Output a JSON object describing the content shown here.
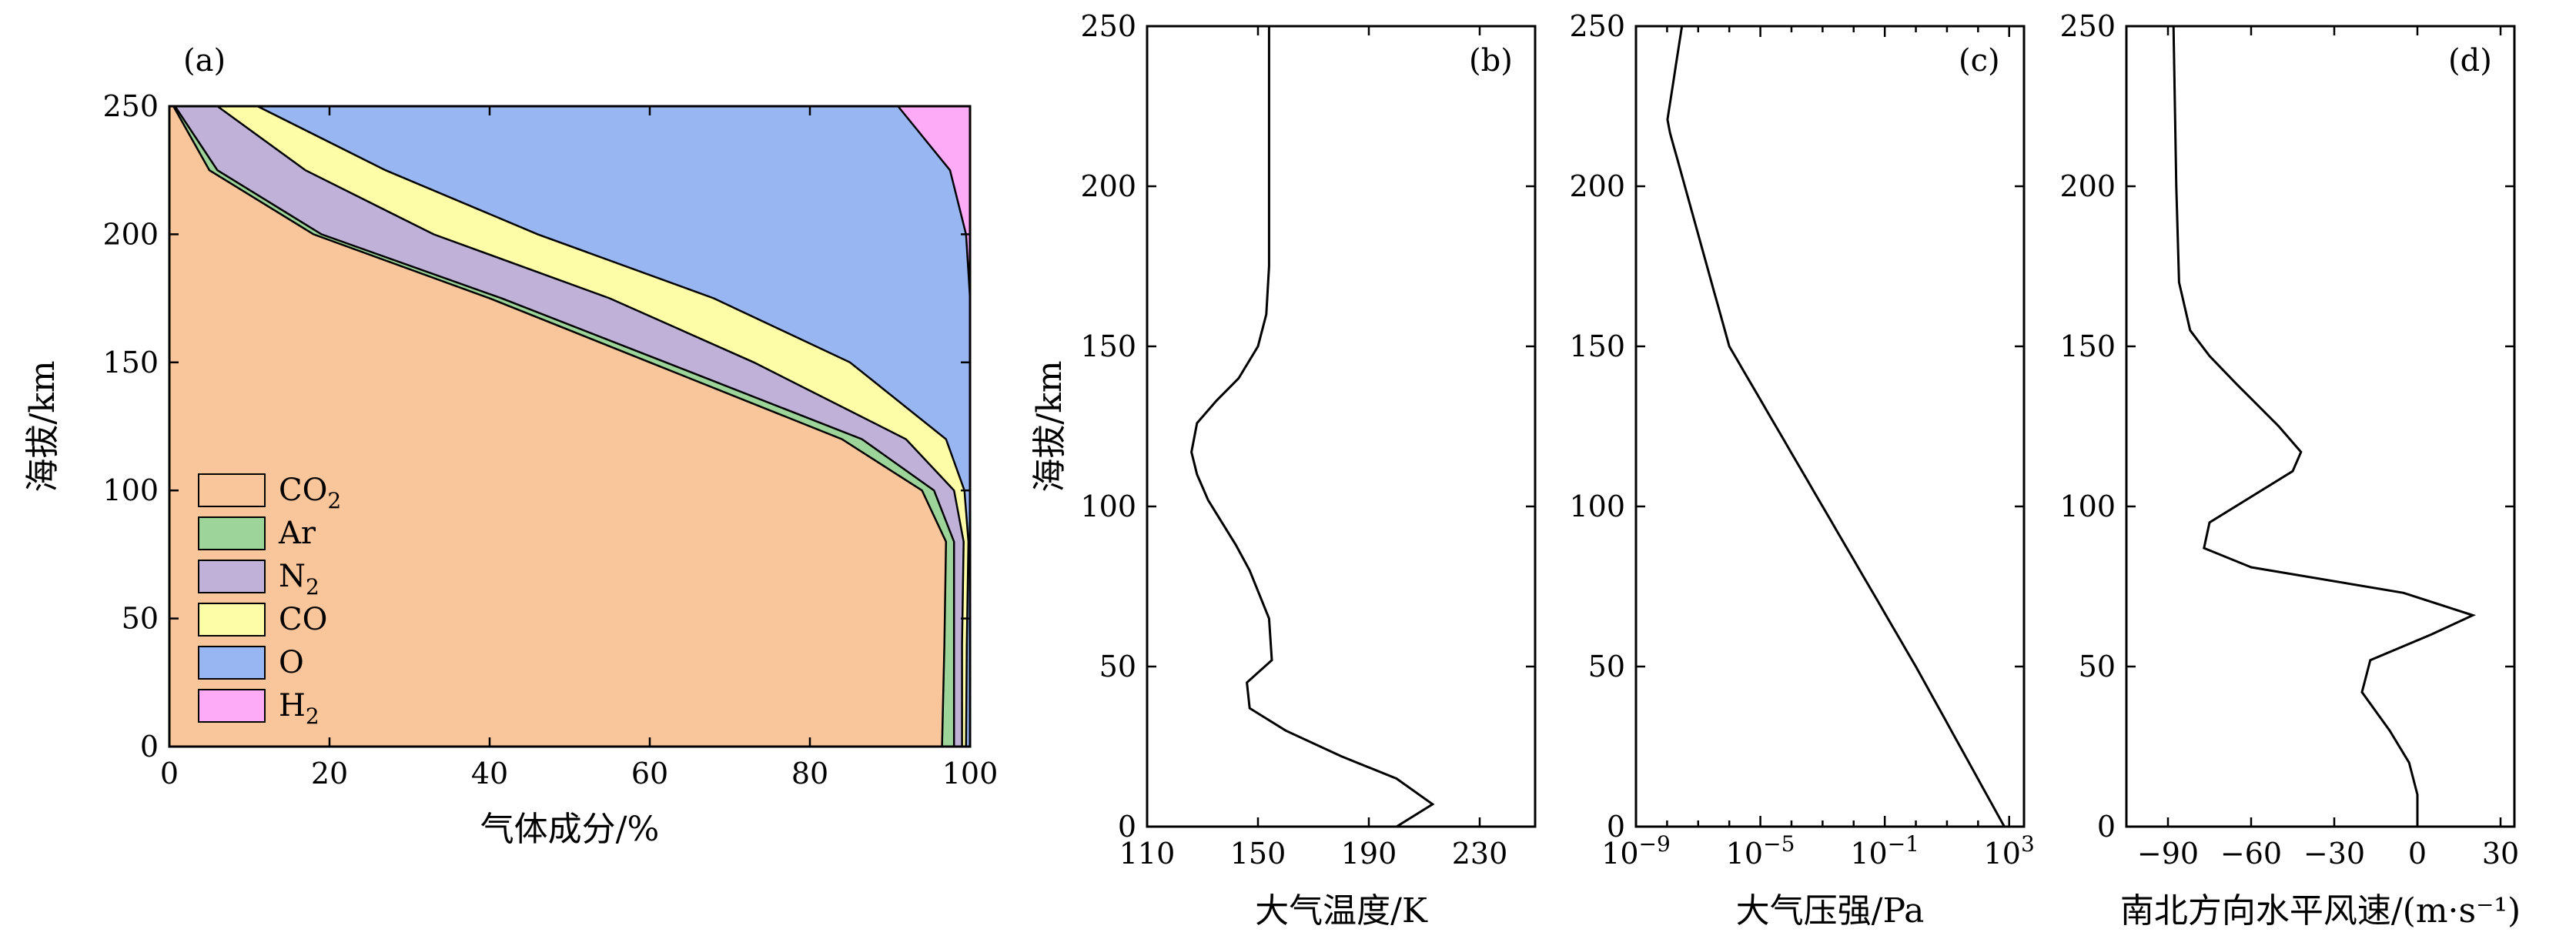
{
  "chart_data": [
    {
      "panel": "(a)",
      "type": "area",
      "xlabel": "气体成分/%",
      "ylabel": "海拔/km",
      "xlim": [
        0,
        100
      ],
      "ylim": [
        0,
        250
      ],
      "xticks": [
        "0",
        "20",
        "40",
        "60",
        "80",
        "100"
      ],
      "yticks": [
        "0",
        "50",
        "100",
        "150",
        "200",
        "250"
      ],
      "legend": {
        "position": "lower-left",
        "entries": [
          "CO2",
          "Ar",
          "N2",
          "CO",
          "O",
          "H2"
        ]
      },
      "stack_order": [
        "CO2",
        "Ar",
        "N2",
        "CO",
        "O",
        "H2"
      ],
      "altitudes": [
        0,
        40,
        80,
        100,
        120,
        150,
        175,
        200,
        225,
        250
      ],
      "series": [
        {
          "name": "CO2",
          "color": "#f9c59a",
          "cumulative_upper": [
            96.5,
            96.8,
            97.0,
            94.0,
            84.0,
            60.0,
            40.0,
            18.0,
            5.0,
            0.5
          ]
        },
        {
          "name": "Ar",
          "color": "#9dd49a",
          "cumulative_upper": [
            98.0,
            98.0,
            98.0,
            95.5,
            86.5,
            62.0,
            41.5,
            19.0,
            6.0,
            0.7
          ]
        },
        {
          "name": "N2",
          "color": "#c0b1d9",
          "cumulative_upper": [
            99.0,
            99.0,
            99.2,
            98.0,
            92.0,
            73.0,
            55.0,
            33.0,
            17.0,
            6.0
          ]
        },
        {
          "name": "CO",
          "color": "#fdfda8",
          "cumulative_upper": [
            99.5,
            99.6,
            99.8,
            99.3,
            97.0,
            85.0,
            68.0,
            46.0,
            27.0,
            11.0
          ]
        },
        {
          "name": "O",
          "color": "#98b6f2",
          "cumulative_upper": [
            100,
            100,
            100,
            100,
            100,
            100,
            100,
            99.5,
            97.5,
            91.0
          ]
        },
        {
          "name": "H2",
          "color": "#fdaaf7",
          "cumulative_upper": [
            100,
            100,
            100,
            100,
            100,
            100,
            100,
            100,
            100,
            100
          ]
        }
      ]
    },
    {
      "panel": "(b)",
      "type": "line",
      "xlabel": "大气温度/K",
      "ylabel": "海拔/km",
      "xlim": [
        110,
        250
      ],
      "ylim": [
        0,
        250
      ],
      "xticks": [
        "110",
        "150",
        "190",
        "230"
      ],
      "yticks": [
        "0",
        "50",
        "100",
        "150",
        "200",
        "250"
      ],
      "x": [
        200,
        213,
        200,
        180,
        160,
        147,
        146,
        155,
        154,
        147,
        142,
        137,
        132,
        130,
        128,
        126,
        128,
        135,
        143,
        150,
        153,
        154,
        154,
        154
      ],
      "y": [
        0,
        7,
        15,
        22,
        30,
        37,
        45,
        52,
        65,
        80,
        88,
        95,
        102,
        106,
        110,
        117,
        126,
        133,
        140,
        150,
        160,
        175,
        200,
        250
      ]
    },
    {
      "panel": "(c)",
      "type": "line",
      "xlabel": "大气压强/Pa",
      "ylabel": "",
      "xscale": "log",
      "xlim": [
        1e-09,
        3000
      ],
      "ylim": [
        0,
        250
      ],
      "xticks": [
        "10^-9",
        "10^-5",
        "10^-1",
        "10^3"
      ],
      "yticks": [
        "0",
        "50",
        "100",
        "150",
        "200",
        "250"
      ],
      "x": [
        700,
        1,
        0.001,
        1e-06,
        1e-08,
        3e-08
      ],
      "y": [
        0,
        50,
        100,
        150,
        220,
        250
      ]
    },
    {
      "panel": "(d)",
      "type": "line",
      "xlabel": "南北方向水平风速/(m·s⁻¹)",
      "ylabel": "",
      "xlim": [
        -105,
        35
      ],
      "ylim": [
        0,
        250
      ],
      "xticks": [
        "−90",
        "−60",
        "−30",
        "0",
        "30"
      ],
      "yticks": [
        "0",
        "50",
        "100",
        "150",
        "200",
        "250"
      ],
      "x": [
        0,
        0,
        -3,
        -10,
        -20,
        -17,
        5,
        20,
        -5,
        -60,
        -77,
        -75,
        -60,
        -45,
        -42,
        -50,
        -65,
        -75,
        -82,
        -86,
        -87,
        -88
      ],
      "y": [
        0,
        10,
        20,
        30,
        42,
        52,
        60,
        66,
        73,
        81,
        87,
        95,
        103,
        111,
        117,
        125,
        138,
        147,
        155,
        170,
        200,
        250
      ]
    }
  ],
  "legend_labels": {
    "CO2": "CO",
    "CO2_sub": "2",
    "Ar": "Ar",
    "N2": "N",
    "N2_sub": "2",
    "CO": "CO",
    "O": "O",
    "H2": "H",
    "H2_sub": "2"
  },
  "axis_text": {
    "a_tag": "(a)",
    "b_tag": "(b)",
    "c_tag": "(c)",
    "d_tag": "(d)",
    "a_xlabel": "气体成分/%",
    "a_ylabel": "海拔/km",
    "b_xlabel": "大气温度/K",
    "b_ylabel": "海拔/km",
    "c_xlabel": "大气压强/Pa",
    "d_xlabel": "南北方向水平风速/(m·s⁻¹)"
  }
}
